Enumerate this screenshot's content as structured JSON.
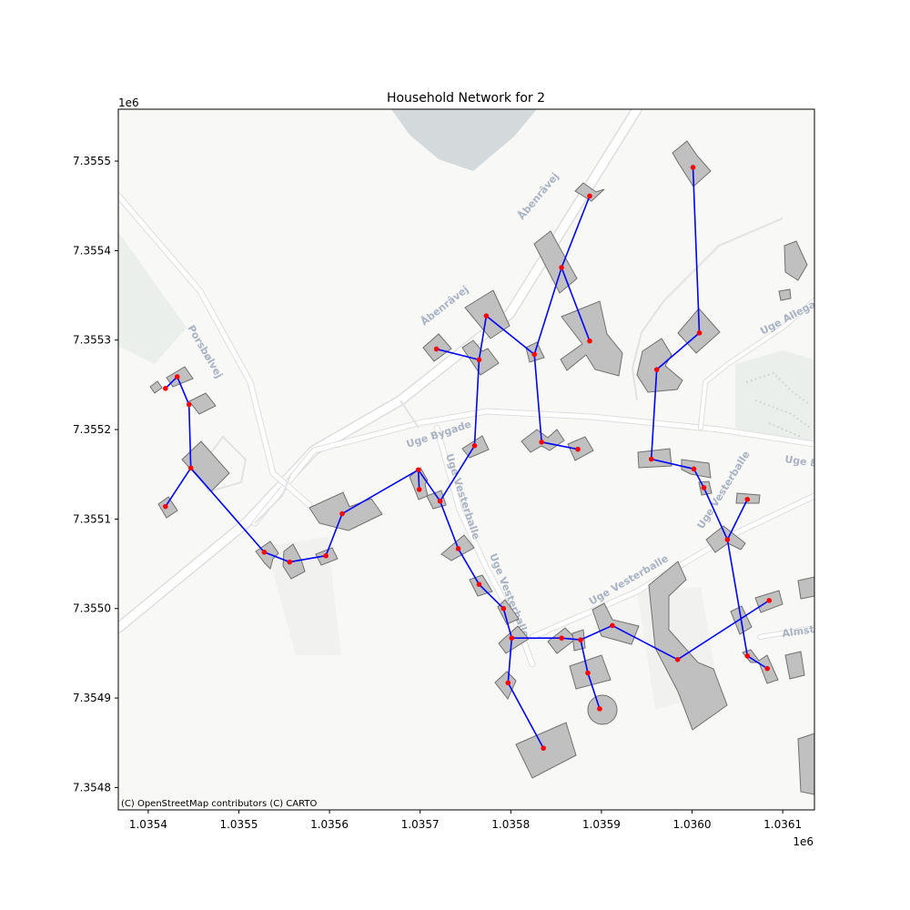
{
  "title": "Household Network for 2",
  "attribution": "(C) OpenStreetMap contributors (C) CARTO",
  "x_axis": {
    "offset_label": "1e6",
    "ticks": [
      {
        "value": 1.0354,
        "label": "1.0354"
      },
      {
        "value": 1.0355,
        "label": "1.0355"
      },
      {
        "value": 1.0356,
        "label": "1.0356"
      },
      {
        "value": 1.0357,
        "label": "1.0357"
      },
      {
        "value": 1.0358,
        "label": "1.0358"
      },
      {
        "value": 1.0359,
        "label": "1.0359"
      },
      {
        "value": 1.036,
        "label": "1.0360"
      },
      {
        "value": 1.0361,
        "label": "1.0361"
      }
    ],
    "range": [
      1.035367,
      1.036135
    ]
  },
  "y_axis": {
    "offset_label": "1e6",
    "ticks": [
      {
        "value": 7.3548,
        "label": "7.3548"
      },
      {
        "value": 7.3549,
        "label": "7.3549"
      },
      {
        "value": 7.355,
        "label": "7.3550"
      },
      {
        "value": 7.3551,
        "label": "7.3551"
      },
      {
        "value": 7.3552,
        "label": "7.3552"
      },
      {
        "value": 7.3553,
        "label": "7.3553"
      },
      {
        "value": 7.3554,
        "label": "7.3554"
      },
      {
        "value": 7.3555,
        "label": "7.3555"
      }
    ],
    "range": [
      7.354775,
      7.355558
    ]
  },
  "street_labels": [
    "Åbenrâvej",
    "Åbenrâvej",
    "Porsbølvej",
    "Uge Bygade",
    "Uge Vesterballe",
    "Uge Vesterballe",
    "Uge Vesterballe",
    "Uge Vesterballe",
    "Uge Allegade",
    "Uge Bygade",
    "Almst"
  ],
  "colors": {
    "edge": "#0000ff",
    "node": "#ff0000",
    "building": "#c0c0c0",
    "map_background": "#f8f8f7",
    "water": "#d4dadc",
    "park": "#eaefec"
  },
  "chart_data": {
    "type": "network",
    "title": "Household Network for 2",
    "xlabel": "",
    "ylabel": "",
    "x_offset": "1e6",
    "y_offset": "1e6",
    "xlim": [
      1.035367,
      1.036135
    ],
    "ylim": [
      7.354775,
      7.355558
    ],
    "grid": false,
    "nodes": [
      {
        "id": "n1",
        "x": 1.035419,
        "y": 7.355246
      },
      {
        "id": "n2",
        "x": 1.035432,
        "y": 7.355259
      },
      {
        "id": "n3",
        "x": 1.035445,
        "y": 7.355228
      },
      {
        "id": "n4",
        "x": 1.035447,
        "y": 7.355157
      },
      {
        "id": "n5",
        "x": 1.035419,
        "y": 7.355114
      },
      {
        "id": "n6",
        "x": 1.035528,
        "y": 7.355063
      },
      {
        "id": "n7",
        "x": 1.035556,
        "y": 7.355052
      },
      {
        "id": "n8",
        "x": 1.035596,
        "y": 7.355059
      },
      {
        "id": "n9",
        "x": 1.035614,
        "y": 7.355106
      },
      {
        "id": "n10",
        "x": 1.035698,
        "y": 7.355155
      },
      {
        "id": "n11",
        "x": 1.035699,
        "y": 7.355133
      },
      {
        "id": "n12",
        "x": 1.035722,
        "y": 7.35512
      },
      {
        "id": "n13",
        "x": 1.035742,
        "y": 7.355067
      },
      {
        "id": "n14",
        "x": 1.035765,
        "y": 7.355027
      },
      {
        "id": "n15",
        "x": 1.035792,
        "y": 7.355
      },
      {
        "id": "n16",
        "x": 1.035801,
        "y": 7.354967
      },
      {
        "id": "n17",
        "x": 1.035797,
        "y": 7.354917
      },
      {
        "id": "n18",
        "x": 1.035836,
        "y": 7.354844
      },
      {
        "id": "n19",
        "x": 1.035856,
        "y": 7.354967
      },
      {
        "id": "n20",
        "x": 1.035877,
        "y": 7.354965
      },
      {
        "id": "n21",
        "x": 1.035885,
        "y": 7.354928
      },
      {
        "id": "n22",
        "x": 1.035898,
        "y": 7.354888
      },
      {
        "id": "n23",
        "x": 1.035912,
        "y": 7.354981
      },
      {
        "id": "n24",
        "x": 1.035984,
        "y": 7.354943
      },
      {
        "id": "n25",
        "x": 1.036085,
        "y": 7.355009
      },
      {
        "id": "n26",
        "x": 1.036061,
        "y": 7.354947
      },
      {
        "id": "n27",
        "x": 1.036083,
        "y": 7.354933
      },
      {
        "id": "n28",
        "x": 1.036039,
        "y": 7.355077
      },
      {
        "id": "n29",
        "x": 1.036061,
        "y": 7.355122
      },
      {
        "id": "n30",
        "x": 1.036013,
        "y": 7.355135
      },
      {
        "id": "n31",
        "x": 1.036002,
        "y": 7.355156
      },
      {
        "id": "n32",
        "x": 1.035955,
        "y": 7.355167
      },
      {
        "id": "n33",
        "x": 1.035961,
        "y": 7.355267
      },
      {
        "id": "n34",
        "x": 1.036008,
        "y": 7.355308
      },
      {
        "id": "n35",
        "x": 1.036001,
        "y": 7.355493
      },
      {
        "id": "n36",
        "x": 1.035887,
        "y": 7.355461
      },
      {
        "id": "n37",
        "x": 1.035856,
        "y": 7.355381
      },
      {
        "id": "n38",
        "x": 1.035887,
        "y": 7.355299
      },
      {
        "id": "n39",
        "x": 1.035826,
        "y": 7.355284
      },
      {
        "id": "n40",
        "x": 1.035834,
        "y": 7.355186
      },
      {
        "id": "n41",
        "x": 1.035874,
        "y": 7.355178
      },
      {
        "id": "n42",
        "x": 1.035773,
        "y": 7.355327
      },
      {
        "id": "n43",
        "x": 1.035765,
        "y": 7.355278
      },
      {
        "id": "n44",
        "x": 1.035718,
        "y": 7.35529
      },
      {
        "id": "n45",
        "x": 1.03576,
        "y": 7.355182
      }
    ],
    "edges": [
      [
        "n1",
        "n2"
      ],
      [
        "n2",
        "n3"
      ],
      [
        "n3",
        "n4"
      ],
      [
        "n4",
        "n5"
      ],
      [
        "n4",
        "n6"
      ],
      [
        "n6",
        "n7"
      ],
      [
        "n7",
        "n8"
      ],
      [
        "n8",
        "n9"
      ],
      [
        "n9",
        "n10"
      ],
      [
        "n10",
        "n11"
      ],
      [
        "n10",
        "n12"
      ],
      [
        "n12",
        "n45"
      ],
      [
        "n45",
        "n43"
      ],
      [
        "n43",
        "n44"
      ],
      [
        "n12",
        "n13"
      ],
      [
        "n13",
        "n14"
      ],
      [
        "n14",
        "n15"
      ],
      [
        "n15",
        "n16"
      ],
      [
        "n16",
        "n17"
      ],
      [
        "n17",
        "n18"
      ],
      [
        "n16",
        "n19"
      ],
      [
        "n19",
        "n20"
      ],
      [
        "n20",
        "n21"
      ],
      [
        "n21",
        "n22"
      ],
      [
        "n20",
        "n23"
      ],
      [
        "n23",
        "n24"
      ],
      [
        "n24",
        "n25"
      ],
      [
        "n26",
        "n27"
      ],
      [
        "n26",
        "n28"
      ],
      [
        "n28",
        "n29"
      ],
      [
        "n28",
        "n30"
      ],
      [
        "n30",
        "n31"
      ],
      [
        "n31",
        "n32"
      ],
      [
        "n32",
        "n33"
      ],
      [
        "n33",
        "n34"
      ],
      [
        "n34",
        "n35"
      ],
      [
        "n43",
        "n42"
      ],
      [
        "n42",
        "n39"
      ],
      [
        "n39",
        "n40"
      ],
      [
        "n40",
        "n41"
      ],
      [
        "n39",
        "n37"
      ],
      [
        "n37",
        "n36"
      ],
      [
        "n37",
        "n38"
      ]
    ]
  }
}
